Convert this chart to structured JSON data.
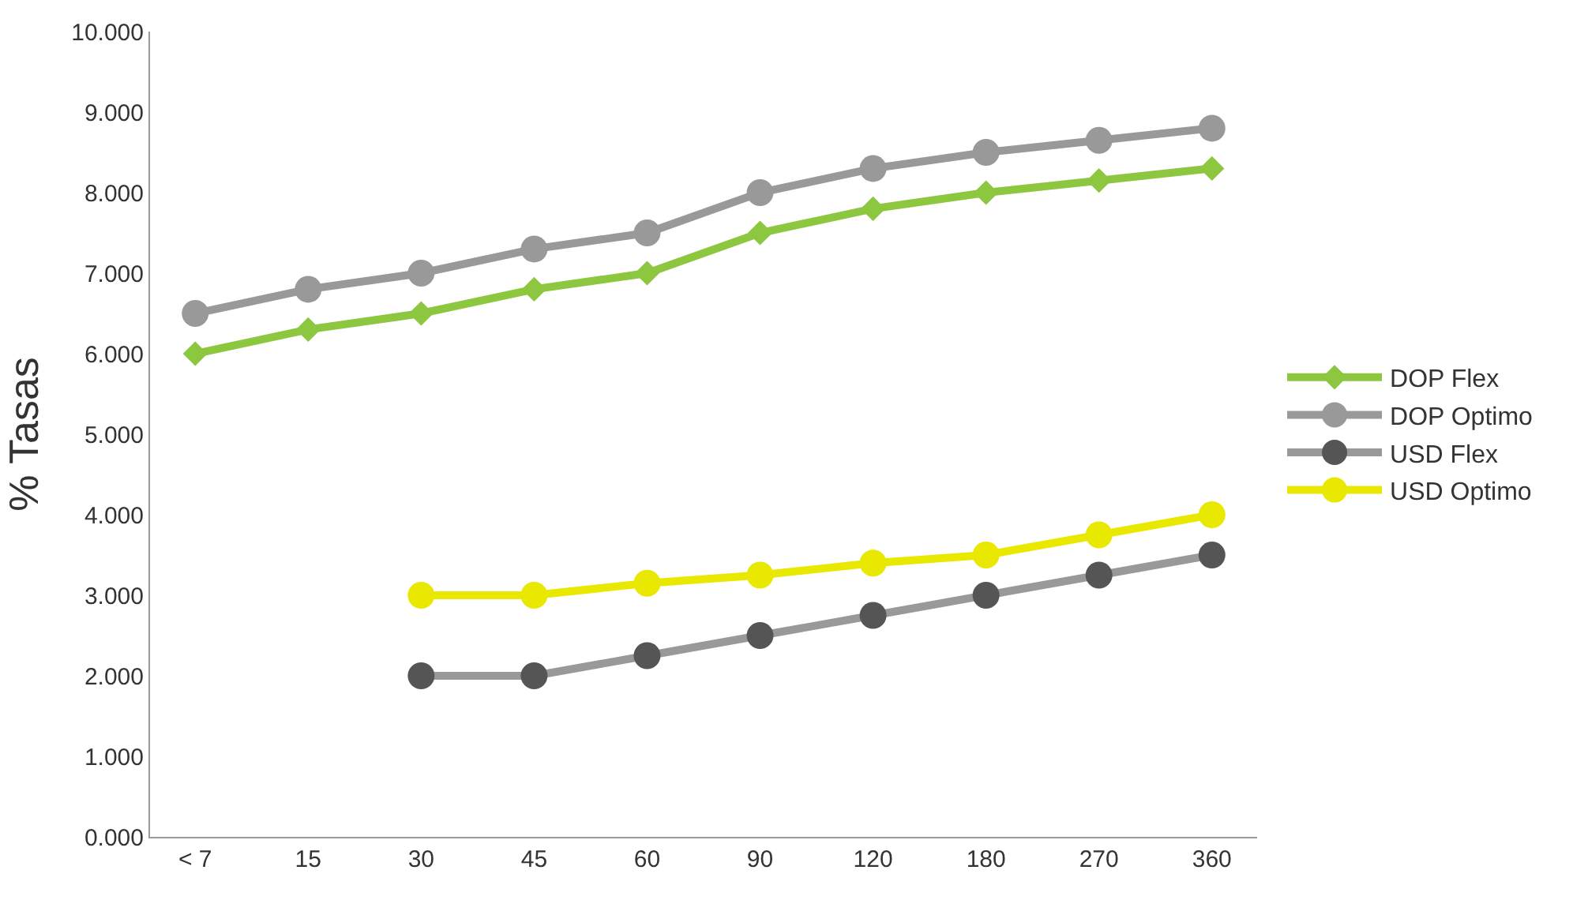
{
  "chart_data": {
    "type": "line",
    "ylabel": "% Tasas",
    "categories": [
      "< 7",
      "15",
      "30",
      "45",
      "60",
      "90",
      "120",
      "180",
      "270",
      "360"
    ],
    "series": [
      {
        "name": "DOP Flex",
        "color": "#8dc63f",
        "marker": "diamond",
        "values": [
          6.0,
          6.3,
          6.5,
          6.8,
          7.0,
          7.5,
          7.8,
          8.0,
          8.15,
          8.3
        ]
      },
      {
        "name": "DOP Optimo",
        "color": "#999999",
        "marker": "circle",
        "values": [
          6.5,
          6.8,
          7.0,
          7.3,
          7.5,
          8.0,
          8.3,
          8.5,
          8.65,
          8.8
        ]
      },
      {
        "name": "USD Flex",
        "color": "#555555",
        "marker": "circle",
        "values": [
          null,
          null,
          2.0,
          2.0,
          2.25,
          2.5,
          2.75,
          3.0,
          3.25,
          3.5
        ]
      },
      {
        "name": "USD Optimo",
        "color": "#e8e800",
        "marker": "circle",
        "values": [
          null,
          null,
          3.0,
          3.0,
          3.15,
          3.25,
          3.4,
          3.5,
          3.75,
          4.0
        ]
      }
    ],
    "ylim": [
      0,
      10
    ],
    "yticks": [
      {
        "value": 0,
        "label": "0.000"
      },
      {
        "value": 1,
        "label": "1.000"
      },
      {
        "value": 2,
        "label": "2.000"
      },
      {
        "value": 3,
        "label": "3.000"
      },
      {
        "value": 4,
        "label": "4.000"
      },
      {
        "value": 5,
        "label": "5.000"
      },
      {
        "value": 6,
        "label": "6.000"
      },
      {
        "value": 7,
        "label": "7.000"
      },
      {
        "value": 8,
        "label": "8.000"
      },
      {
        "value": 9,
        "label": "9.000"
      },
      {
        "value": 10,
        "label": "10.000"
      }
    ],
    "legend": "right",
    "line_style": "solid"
  }
}
